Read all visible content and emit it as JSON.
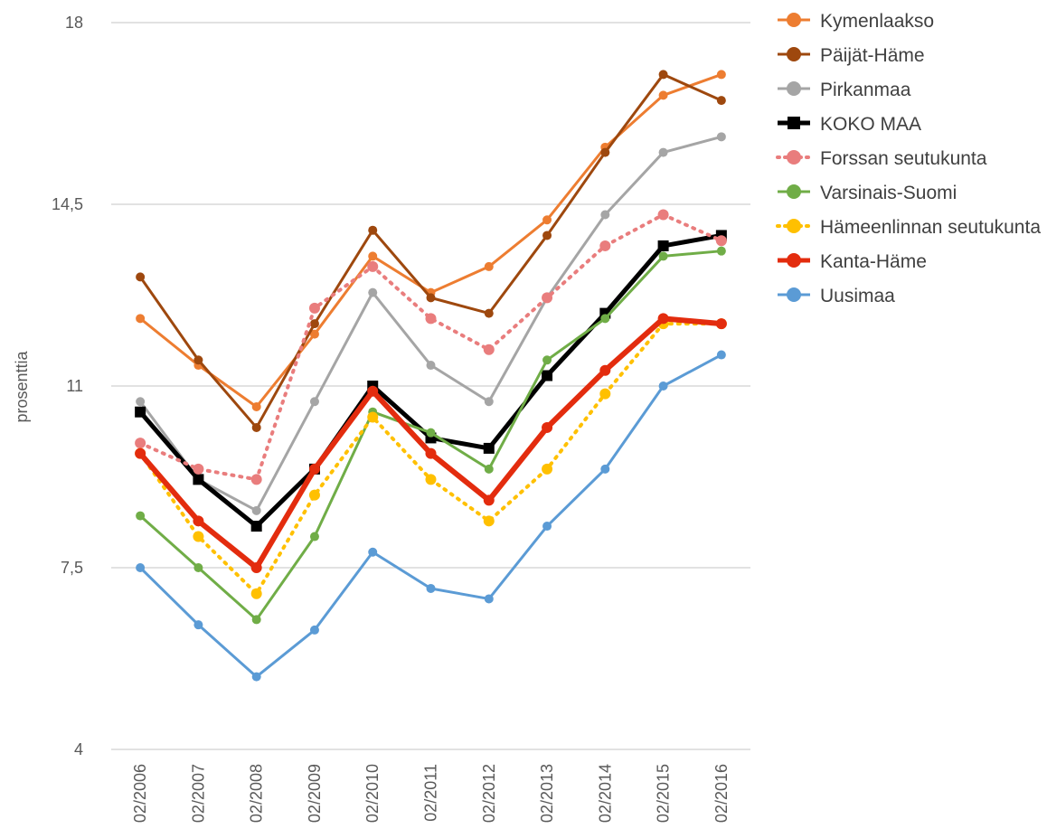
{
  "chart_data": {
    "type": "line",
    "title": "",
    "xlabel": "",
    "ylabel": "prosenttia",
    "ylim": [
      4,
      18
    ],
    "yticks": [
      4,
      7.5,
      11,
      14.5,
      18
    ],
    "ytick_labels": [
      "4",
      "7,5",
      "11",
      "14,5",
      "18"
    ],
    "grid": true,
    "legend_position": "right",
    "categories": [
      "02/2006",
      "02/2007",
      "02/2008",
      "02/2009",
      "02/2010",
      "02/2011",
      "02/2012",
      "02/2013",
      "02/2014",
      "02/2015",
      "02/2016"
    ],
    "series": [
      {
        "name": "Kymenlaakso",
        "color": "#ED7D31",
        "dash": false,
        "width": 3,
        "marker": "circle",
        "values": [
          12.3,
          11.4,
          10.6,
          12.0,
          13.5,
          12.8,
          13.3,
          14.2,
          15.6,
          16.6,
          17.0
        ]
      },
      {
        "name": "Päijät-Häme",
        "color": "#9E480E",
        "dash": false,
        "width": 3,
        "marker": "circle",
        "values": [
          13.1,
          11.5,
          10.2,
          12.2,
          14.0,
          12.7,
          12.4,
          13.9,
          15.5,
          17.0,
          16.5
        ]
      },
      {
        "name": "Pirkanmaa",
        "color": "#A5A5A5",
        "dash": false,
        "width": 3,
        "marker": "circle",
        "values": [
          10.7,
          9.2,
          8.6,
          10.7,
          12.8,
          11.4,
          10.7,
          12.7,
          14.3,
          15.5,
          15.8
        ]
      },
      {
        "name": "KOKO MAA",
        "color": "#000000",
        "dash": false,
        "width": 5,
        "marker": "square",
        "values": [
          10.5,
          9.2,
          8.3,
          9.4,
          11.0,
          10.0,
          9.8,
          11.2,
          12.4,
          13.7,
          13.9
        ]
      },
      {
        "name": "Forssan seutukunta",
        "color": "#E97D7D",
        "dash": true,
        "width": 4,
        "marker": "circle",
        "values": [
          9.9,
          9.4,
          9.2,
          12.5,
          13.3,
          12.3,
          11.7,
          12.7,
          13.7,
          14.3,
          13.8
        ]
      },
      {
        "name": "Varsinais-Suomi",
        "color": "#70AD47",
        "dash": false,
        "width": 3,
        "marker": "circle",
        "values": [
          8.5,
          7.5,
          6.5,
          8.1,
          10.5,
          10.1,
          9.4,
          11.5,
          12.3,
          13.5,
          13.6
        ]
      },
      {
        "name": "Hämeenlinnan seutukunta",
        "color": "#FFC000",
        "dash": true,
        "width": 4,
        "marker": "circle",
        "values": [
          9.7,
          8.1,
          7.0,
          8.9,
          10.4,
          9.2,
          8.4,
          9.4,
          10.85,
          12.2,
          12.2
        ]
      },
      {
        "name": "Kanta-Häme",
        "color": "#E32C0E",
        "dash": false,
        "width": 6,
        "marker": "circle",
        "values": [
          9.7,
          8.4,
          7.5,
          9.4,
          10.9,
          9.7,
          8.8,
          10.2,
          11.3,
          12.3,
          12.2
        ]
      },
      {
        "name": "Uusimaa",
        "color": "#5B9BD5",
        "dash": false,
        "width": 3,
        "marker": "circle",
        "values": [
          7.5,
          6.4,
          5.4,
          6.3,
          7.8,
          7.1,
          6.9,
          8.3,
          9.4,
          11.0,
          11.6
        ]
      }
    ]
  }
}
